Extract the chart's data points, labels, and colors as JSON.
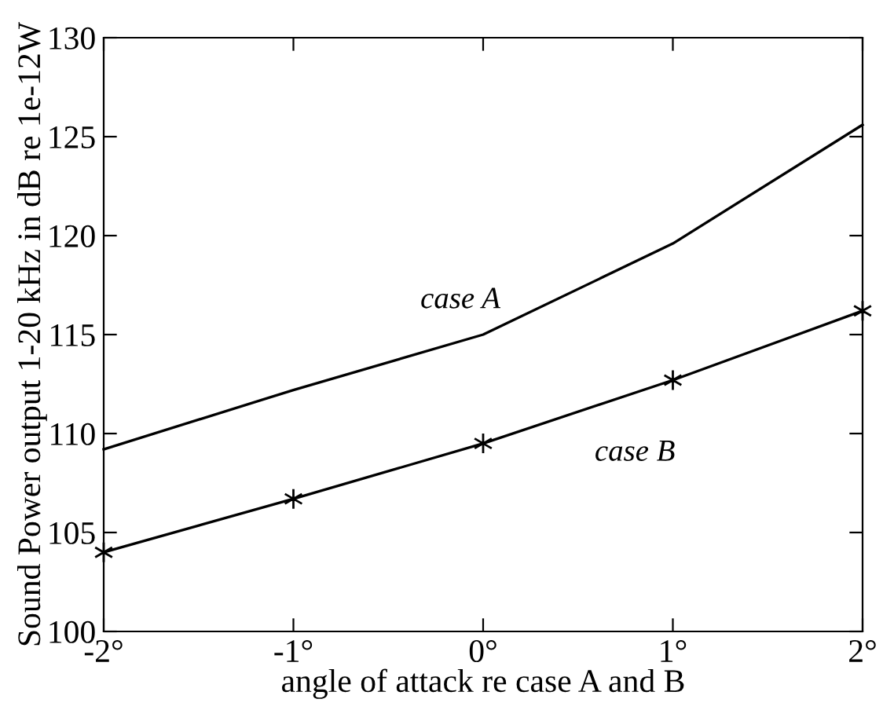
{
  "chart_data": {
    "type": "line",
    "xlabel": "angle of attack re case A and B",
    "ylabel": "Sound Power output 1-20 kHz in dB re 1e-12W",
    "x": [
      -2,
      -1,
      0,
      1,
      2
    ],
    "series": [
      {
        "color": "#000000",
        "values": [
          109.2,
          112.2,
          115.0,
          119.6,
          125.6
        ],
        "marker": "none"
      },
      {
        "color": "#000000",
        "values": [
          104.0,
          106.7,
          109.5,
          112.7,
          116.2
        ],
        "marker": "cross"
      }
    ],
    "annotations": [
      "case A",
      "case B"
    ],
    "xlim": [
      -2,
      2
    ],
    "ylim": [
      100,
      130
    ],
    "xticks": [
      {
        "value": -2,
        "label": "-2°"
      },
      {
        "value": -1,
        "label": "-1°"
      },
      {
        "value": 0,
        "label": "0°"
      },
      {
        "value": 1,
        "label": "1°"
      },
      {
        "value": 2,
        "label": "2°"
      }
    ],
    "yticks": [
      100,
      105,
      110,
      115,
      120,
      125,
      130
    ],
    "grid": false,
    "legend": false,
    "line_style": "solid"
  }
}
